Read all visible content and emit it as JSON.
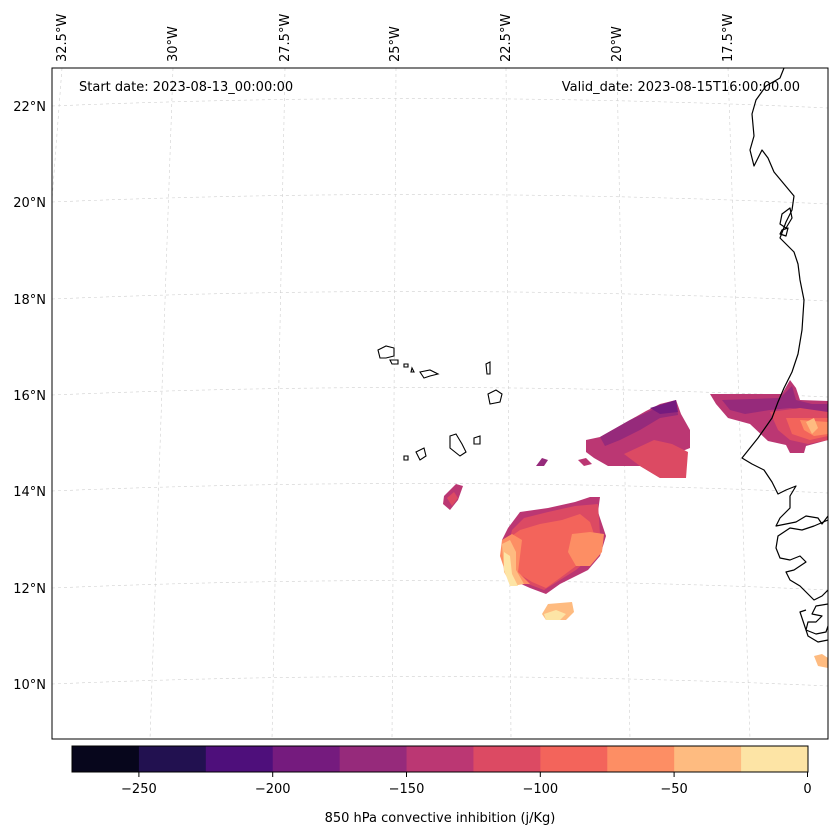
{
  "annotations": {
    "start_date": "Start date: 2023-08-13_00:00:00",
    "valid_date": "Valid_date: 2023-08-15T16:00:00.00"
  },
  "axes": {
    "lon_labels": [
      "32.5°W",
      "30°W",
      "27.5°W",
      "25°W",
      "22.5°W",
      "20°W",
      "17.5°W"
    ],
    "lat_labels": [
      "22°N",
      "20°N",
      "18°N",
      "16°N",
      "14°N",
      "12°N",
      "10°N"
    ]
  },
  "colorbar": {
    "label": "850 hPa convective inhibition (j/Kg)",
    "ticks": [
      "−250",
      "−200",
      "−150",
      "−100",
      "−50",
      "0"
    ],
    "colors": [
      "#07061c",
      "#221150",
      "#4e0f7b",
      "#751b7e",
      "#962a7b",
      "#bb3773",
      "#dc4a63",
      "#f3645b",
      "#fd8e64",
      "#febb80",
      "#fde4a5"
    ]
  },
  "chart_data": {
    "type": "map-contour",
    "variable": "850 hPa convective inhibition",
    "units": "j/Kg",
    "levels": [
      -275,
      -250,
      -225,
      -200,
      -175,
      -150,
      -125,
      -100,
      -75,
      -50,
      -25,
      0
    ],
    "lon_range": [
      -33,
      -15.5
    ],
    "lat_range": [
      9,
      22.8
    ]
  }
}
